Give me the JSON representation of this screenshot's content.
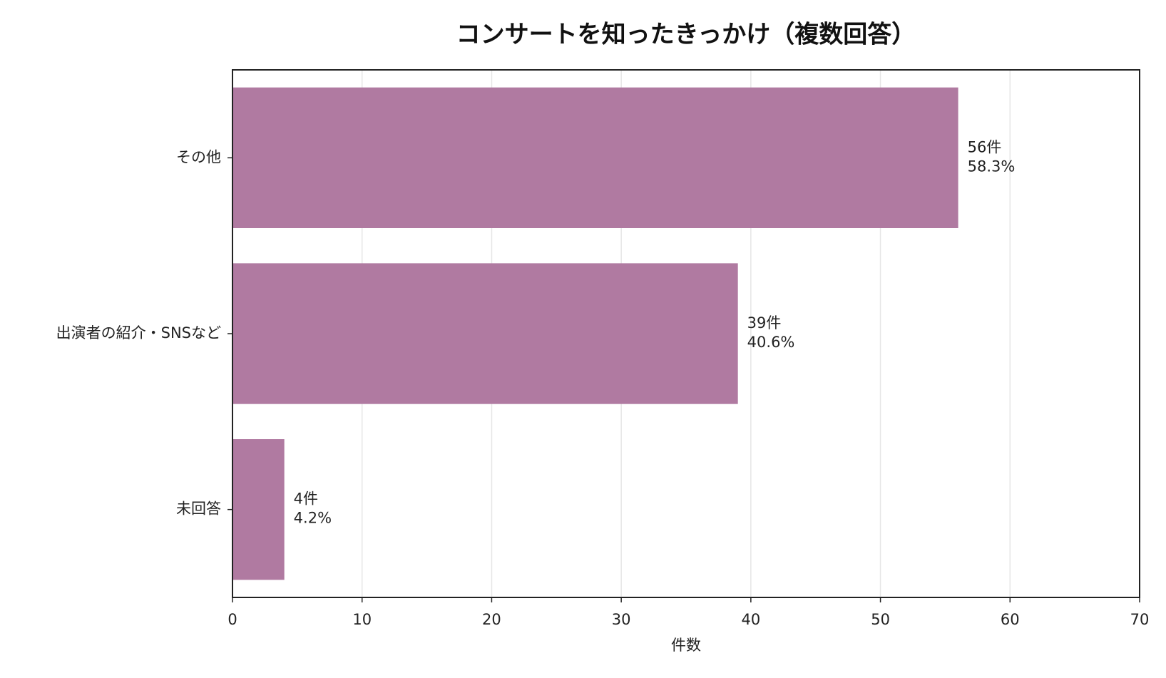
{
  "chart_data": {
    "type": "bar",
    "orientation": "horizontal",
    "title": "コンサートを知ったきっかけ（複数回答）",
    "x_label": "件数",
    "categories": [
      "その他",
      "出演者の紹介・SNSなど",
      "未回答"
    ],
    "values": [
      56,
      39,
      4
    ],
    "value_labels": [
      "56件",
      "39件",
      "4件"
    ],
    "share_labels": [
      "58.3%",
      "40.6%",
      "4.2%"
    ],
    "color": "#b07aa1",
    "xlim": [
      0,
      70
    ],
    "xticks": [
      0,
      10,
      20,
      30,
      40,
      50,
      60,
      70
    ],
    "grid": true
  }
}
